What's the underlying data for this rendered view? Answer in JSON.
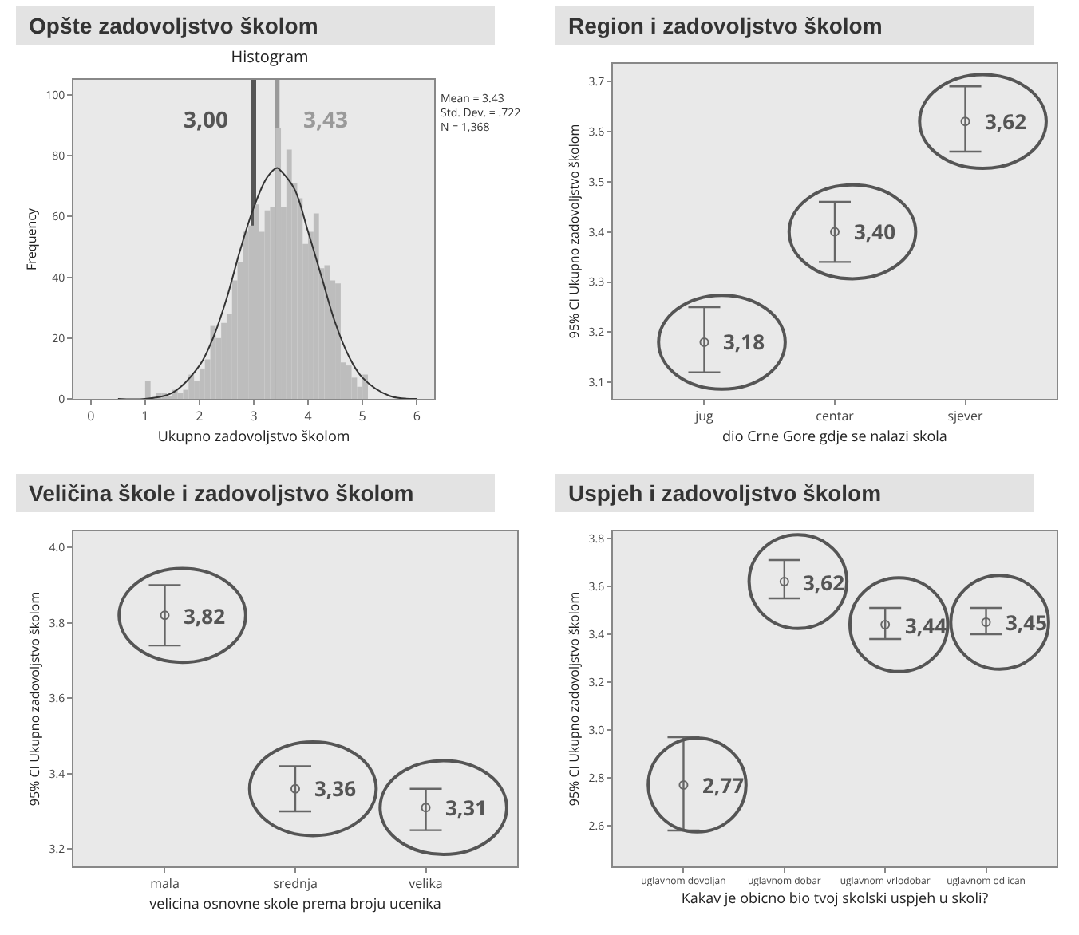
{
  "chart_data": [
    {
      "type": "histogram",
      "title": "Opšte zadovoljstvo školom",
      "subtitle": "Histogram",
      "xlabel": "Ukupno zadovoljstvo školom",
      "ylabel": "Frequency",
      "bins": [
        1.0,
        1.1,
        1.2,
        1.3,
        1.4,
        1.5,
        1.6,
        1.7,
        1.8,
        1.9,
        2.0,
        2.1,
        2.2,
        2.3,
        2.4,
        2.5,
        2.6,
        2.7,
        2.8,
        2.9,
        3.0,
        3.1,
        3.2,
        3.3,
        3.4,
        3.5,
        3.6,
        3.7,
        3.8,
        3.9,
        4.0,
        4.1,
        4.2,
        4.3,
        4.4,
        4.5,
        4.6,
        4.7,
        4.8,
        4.9,
        5.0,
        5.1
      ],
      "values": [
        6,
        0,
        2,
        2,
        1,
        3,
        2,
        3,
        8,
        6,
        10,
        13,
        24,
        20,
        25,
        28,
        39,
        45,
        55,
        57,
        64,
        55,
        62,
        63,
        89,
        63,
        82,
        71,
        66,
        51,
        55,
        61,
        43,
        44,
        39,
        38,
        12,
        11,
        7,
        4,
        8
      ],
      "color": "#bdbdbd",
      "series": [
        {
          "type": "line",
          "color": "#333333",
          "x": [
            0.5,
            1.0,
            1.5,
            2.0,
            2.25,
            2.5,
            2.75,
            3.0,
            3.25,
            3.43,
            3.5,
            3.75,
            4.0,
            4.25,
            4.5,
            4.75,
            5.0,
            5.5,
            6.0
          ],
          "values": [
            0,
            0,
            2,
            11,
            20,
            33,
            49,
            63,
            73,
            76,
            75,
            69,
            55,
            40,
            25,
            14,
            7,
            1,
            0
          ]
        }
      ],
      "ref_lines": [
        {
          "axis": "x",
          "value": 3,
          "label": "3,00",
          "color": "#555555"
        },
        {
          "axis": "x",
          "value": 3.43,
          "label": "3,43",
          "color": "#9a9a9a"
        }
      ],
      "annotations": [
        "Mean = 3.43\nStd. Dev. = .722\nN = 1,368"
      ],
      "xlim": [
        -0.32,
        6.32
      ],
      "xticks": [
        0,
        1,
        2,
        3,
        4,
        5,
        6
      ],
      "ylim": [
        0,
        105
      ],
      "yticks": [
        0,
        20,
        40,
        60,
        80,
        100
      ]
    },
    {
      "type": "scatter",
      "title": "Region i zadovoljstvo školom",
      "xlabel": "dio Crne Gore gdje se nalazi skola",
      "ylabel": "95% CI Ukupno zadovoljstvo školom",
      "categories": [
        "jug",
        "centar",
        "sjever"
      ],
      "values": [
        3.18,
        3.4,
        3.62
      ],
      "errors": [
        [
          3.12,
          3.25
        ],
        [
          3.34,
          3.46
        ],
        [
          3.56,
          3.69
        ]
      ],
      "color": "#666666",
      "marker": "circle",
      "annotations": [
        {
          "text": "3,18",
          "x": "jug",
          "y": 3.18
        },
        {
          "text": "3,40",
          "x": "centar",
          "y": 3.4
        },
        {
          "text": "3,62",
          "x": "sjever",
          "y": 3.62
        }
      ],
      "ylim": [
        3.067,
        3.735
      ],
      "yticks": [
        3.1,
        3.2,
        3.3,
        3.4,
        3.5,
        3.6,
        3.7
      ]
    },
    {
      "type": "scatter",
      "title": "Veličina škole i zadovoljstvo školom",
      "xlabel": "velicina osnovne skole prema broju ucenika",
      "ylabel": "95% CI Ukupno zadovoljstvo školom",
      "categories": [
        "mala",
        "srednja",
        "velika"
      ],
      "values": [
        3.82,
        3.36,
        3.31
      ],
      "errors": [
        [
          3.74,
          3.9
        ],
        [
          3.3,
          3.42
        ],
        [
          3.25,
          3.36
        ]
      ],
      "color": "#666666",
      "marker": "circle",
      "annotations": [
        {
          "text": "3,82",
          "x": "mala",
          "y": 3.82
        },
        {
          "text": "3,36",
          "x": "srednja",
          "y": 3.36
        },
        {
          "text": "3,31",
          "x": "velika",
          "y": 3.31
        }
      ],
      "ylim": [
        3.154,
        4.043
      ],
      "yticks": [
        {
          "value": 3.2,
          "label": "3.2"
        },
        {
          "value": 3.4,
          "label": "3.4"
        },
        {
          "value": 3.6,
          "label": "3.6"
        },
        {
          "value": 3.8,
          "label": "3.8"
        },
        {
          "value": 4,
          "label": "4.0"
        }
      ]
    },
    {
      "type": "scatter",
      "title": "Uspjeh i zadovoljstvo školom",
      "xlabel": "Kakav je obicno bio tvoj skolski uspjeh u skoli?",
      "ylabel": "95% CI Ukupno zadovoljstvo školom",
      "categories": [
        "uglavnom dovoljan",
        "uglavnom dobar",
        "uglavnom vrlodobar",
        "uglavnom odlican"
      ],
      "values": [
        2.77,
        3.62,
        3.44,
        3.45
      ],
      "errors": [
        [
          2.58,
          2.97
        ],
        [
          3.55,
          3.71
        ],
        [
          3.38,
          3.51
        ],
        [
          3.4,
          3.51
        ]
      ],
      "color": "#666666",
      "marker": "circle",
      "annotations": [
        {
          "text": "2,77",
          "x": "uglavnom dovoljan",
          "y": 2.77
        },
        {
          "text": "3,62",
          "x": "uglavnom dobar",
          "y": 3.62
        },
        {
          "text": "3,44",
          "x": "uglavnom vrlodobar",
          "y": 3.44
        },
        {
          "text": "3,45",
          "x": "uglavnom odlican",
          "y": 3.45
        }
      ],
      "ylim": [
        2.43,
        3.83
      ],
      "yticks": [
        {
          "value": 2.6,
          "label": "2.6"
        },
        {
          "value": 2.8,
          "label": "2.8"
        },
        {
          "value": 3,
          "label": "3.0"
        },
        {
          "value": 3.2,
          "label": "3.2"
        },
        {
          "value": 3.4,
          "label": "3.4"
        },
        {
          "value": 3.6,
          "label": "3.6"
        },
        {
          "value": 3.8,
          "label": "3.8"
        }
      ]
    }
  ]
}
